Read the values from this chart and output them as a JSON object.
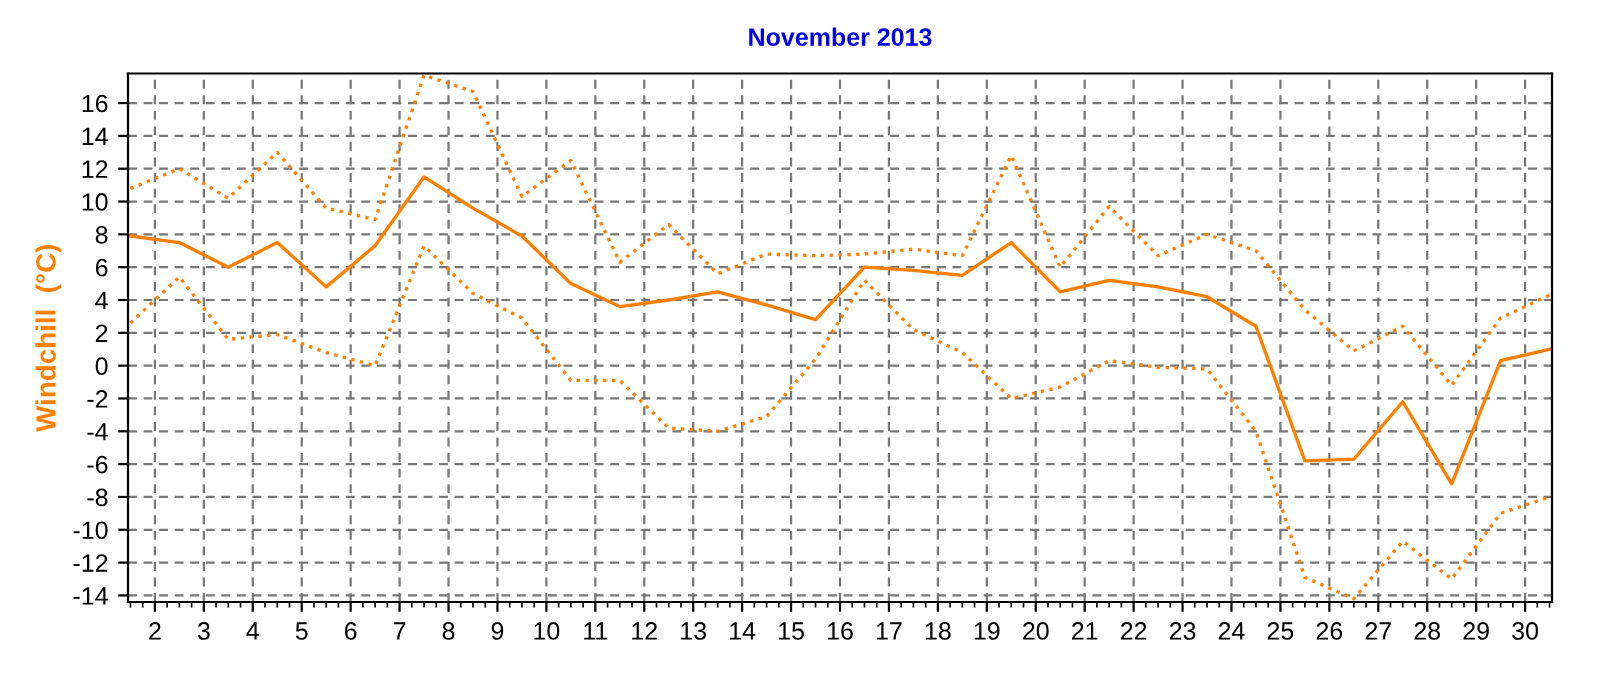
{
  "chart_data": {
    "type": "line",
    "title": "November 2013",
    "ylabel": "Windchill  (°C)",
    "x": [
      1.5,
      2.5,
      3.5,
      4.5,
      5.5,
      6.5,
      7.5,
      8.5,
      9.5,
      10.5,
      11.5,
      12.5,
      13.5,
      14.5,
      15.5,
      16.5,
      17.5,
      18.5,
      19.5,
      20.5,
      21.5,
      22.5,
      23.5,
      24.5,
      25.5,
      26.5,
      27.5,
      28.5,
      29.5,
      30.5
    ],
    "series": [
      {
        "color": "#ff8000",
        "line_style": "dotted",
        "values": [
          10.8,
          12.0,
          10.2,
          13.0,
          9.6,
          8.9,
          17.7,
          16.7,
          10.3,
          12.5,
          6.3,
          8.6,
          5.6,
          6.8,
          6.7,
          6.8,
          7.1,
          6.7,
          12.8,
          6.0,
          9.7,
          6.7,
          8.0,
          7.0,
          3.4,
          0.9,
          2.4,
          -1.2,
          2.9,
          4.3
        ]
      },
      {
        "color": "#ff8000",
        "line_style": "solid",
        "values": [
          7.9,
          7.5,
          6.0,
          7.5,
          4.8,
          7.3,
          11.5,
          9.6,
          7.9,
          5.0,
          3.6,
          4.0,
          4.5,
          3.7,
          2.8,
          6.0,
          5.8,
          5.5,
          7.5,
          4.5,
          5.2,
          4.8,
          4.2,
          2.4,
          -5.8,
          -5.7,
          -2.2,
          -7.2,
          0.3,
          1.0
        ]
      },
      {
        "color": "#ff8000",
        "line_style": "dotted",
        "values": [
          2.6,
          5.4,
          1.6,
          1.9,
          0.8,
          0.0,
          7.3,
          4.4,
          2.9,
          -0.9,
          -0.9,
          -3.8,
          -4.0,
          -3.1,
          0.4,
          5.2,
          2.2,
          0.8,
          -2.0,
          -1.3,
          0.3,
          -0.1,
          -0.2,
          -4.0,
          -12.9,
          -14.2,
          -10.7,
          -13.0,
          -9.0,
          -8.0
        ]
      }
    ],
    "xlim": [
      1.45,
      30.55
    ],
    "xticks": [
      2,
      3,
      4,
      5,
      6,
      7,
      8,
      9,
      10,
      11,
      12,
      13,
      14,
      15,
      16,
      17,
      18,
      19,
      20,
      21,
      22,
      23,
      24,
      25,
      26,
      27,
      28,
      29,
      30
    ],
    "ylim": [
      -14.4,
      17.8
    ],
    "yticks": [
      -14,
      -12,
      -10,
      -8,
      -6,
      -4,
      -2,
      0,
      2,
      4,
      6,
      8,
      10,
      12,
      14,
      16
    ],
    "grid": true,
    "legend": false
  }
}
